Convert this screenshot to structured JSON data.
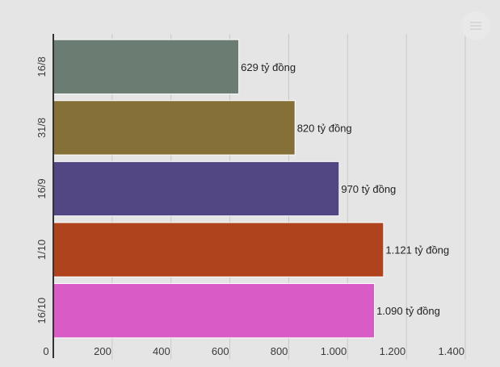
{
  "chart_data": {
    "type": "bar",
    "orientation": "horizontal",
    "categories": [
      "16/8",
      "31/8",
      "16/9",
      "1/10",
      "16/10"
    ],
    "values": [
      629,
      820,
      970,
      1121,
      1090
    ],
    "data_labels": [
      "629 tỷ đồng",
      "820 tỷ đồng",
      "970 tỷ đồng",
      "1.121 tỷ đồng",
      "1.090 tỷ đồng"
    ],
    "colors": [
      "#6b7d72",
      "#857137",
      "#524783",
      "#ae431e",
      "#d95bc5"
    ],
    "xlim": [
      0,
      1400
    ],
    "x_ticks": [
      0,
      200,
      400,
      600,
      800,
      1000,
      1200,
      1400
    ],
    "x_tick_labels": [
      "0",
      "200",
      "400",
      "600",
      "800",
      "1.000",
      "1.200",
      "1.400"
    ],
    "grid": true,
    "title": "",
    "xlabel": "",
    "ylabel": ""
  },
  "toolbar": {
    "menu_icon": "menu-icon"
  }
}
